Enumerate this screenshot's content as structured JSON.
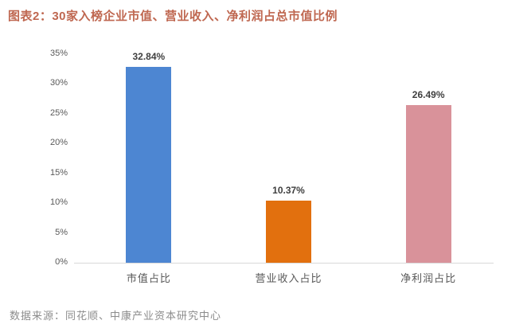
{
  "header": {
    "title": "图表2：30家入榜企业市值、营业收入、净利润占总市值比例"
  },
  "footer": {
    "source": "数据来源：同花顺、中康产业资本研究中心"
  },
  "colors": {
    "title_text": "#BF6750",
    "axis_line": "#D9D9D9",
    "tick_label": "#595959",
    "data_label": "#3F3F3F",
    "source_text": "#8C8C8C",
    "background": "#FFFFFF"
  },
  "chart_data": {
    "type": "bar",
    "title": "图表2：30家入榜企业市值、营业收入、净利润占总市值比例",
    "categories": [
      "市值占比",
      "营业收入占比",
      "净利润占比"
    ],
    "values": [
      32.84,
      10.37,
      26.49
    ],
    "data_labels": [
      "32.84%",
      "10.37%",
      "26.49%"
    ],
    "bar_colors": [
      "#4D86D2",
      "#E2700E",
      "#D9929A"
    ],
    "xlabel": "",
    "ylabel": "",
    "ylim": [
      0,
      35
    ],
    "ytick_step": 5,
    "ytick_labels": [
      "0%",
      "5%",
      "10%",
      "15%",
      "20%",
      "25%",
      "30%",
      "35%"
    ],
    "grid": false,
    "legend": false,
    "source": "数据来源：同花顺、中康产业资本研究中心"
  }
}
